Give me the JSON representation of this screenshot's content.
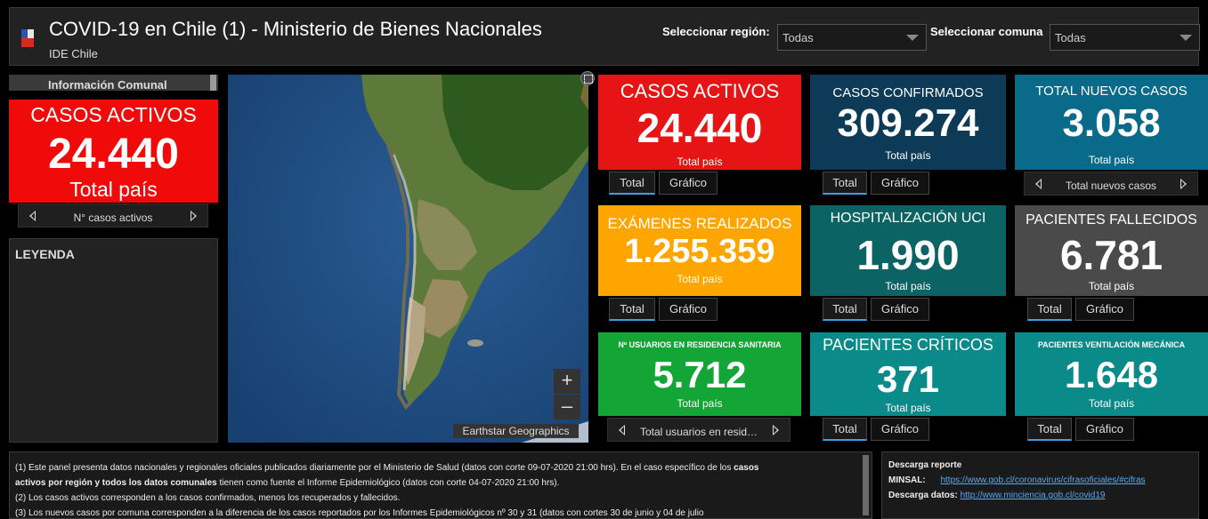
{
  "header": {
    "title": "COVID-19 en Chile (1) - Ministerio de Bienes Nacionales",
    "subtitle": "IDE Chile",
    "region_label": "Seleccionar región:",
    "region_value": "Todas",
    "comuna_label": "Seleccionar comuna",
    "comuna_value": "Todas"
  },
  "left": {
    "info_tab": "Información Comunal",
    "active_title": "CASOS ACTIVOS",
    "active_value": "24.440",
    "active_sub": "Total país",
    "pager_text": "N° casos activos",
    "legend_title": "LEYENDA"
  },
  "map": {
    "zoom_in": "+",
    "zoom_out": "–",
    "attribution": "Earthstar Geographics"
  },
  "tiles": {
    "casos_activos": {
      "title": "CASOS ACTIVOS",
      "value": "24.440",
      "sub": "Total país",
      "color": "#e61414"
    },
    "confirmados": {
      "title": "CASOS CONFIRMADOS",
      "value": "309.274",
      "sub": "Total país",
      "color": "#0d3b57"
    },
    "nuevos": {
      "title": "TOTAL NUEVOS CASOS",
      "value": "3.058",
      "sub": "Total país",
      "color": "#0a6a8a"
    },
    "examenes": {
      "title": "EXÁMENES REALIZADOS",
      "value": "1.255.359",
      "sub": "Total país",
      "color": "#ffa500"
    },
    "uci": {
      "title": "HOSPITALIZACIÓN UCI",
      "value": "1.990",
      "sub": "Total país",
      "color": "#0b6463"
    },
    "fallecidos": {
      "title": "PACIENTES FALLECIDOS",
      "value": "6.781",
      "sub": "Total país",
      "color": "#4a4a4a"
    },
    "residencia": {
      "title": "Nº USUARIOS EN RESIDENCIA SANITARIA",
      "value": "5.712",
      "sub": "Total país",
      "color": "#13a536"
    },
    "criticos": {
      "title": "PACIENTES CRÍTICOS",
      "value": "371",
      "sub": "Total país",
      "color": "#0a8a88"
    },
    "ventilacion": {
      "title": "PACIENTES VENTILACIÓN MECÁNICA",
      "value": "1.648",
      "sub": "Total país",
      "color": "#0a8a88"
    }
  },
  "tabs": {
    "total": "Total",
    "grafico": "Gráfico"
  },
  "pagers": {
    "nuevos": "Total nuevos casos",
    "residencia": "Total usuarios en resid…"
  },
  "notes": {
    "line1_a": "(1) Este panel presenta datos nacionales y regionales oficiales publicados diariamente por el Ministerio de Salud (datos con corte 09-07-2020 21:00 hrs). En el caso específico de los",
    "line1_b": "casos",
    "line2_a": "activos por región y todos los datos comunales",
    "line2_b": "tienen como fuente el Informe Epidemiológico (datos con corte 04-07-2020 21:00 hrs).",
    "line3": "(2) Los casos activos corresponden a los casos confirmados, menos los recuperados y fallecidos.",
    "line4": "(3) Los nuevos casos por comuna corresponden a la diferencia de los casos reportados por los Informes Epidemiológicos nº 30 y 31 (datos con  cortes 30  de junio y 04 de julio"
  },
  "downloads": {
    "title": "Descarga reporte",
    "minsal_label": "MINSAL:",
    "minsal_link": "https://www.gob.cl/coronavirus/cifrasoficiales/#cifras",
    "datos_label": "Descarga datos:",
    "datos_link": "http://www.minciencia.gob.cl/covid19"
  }
}
